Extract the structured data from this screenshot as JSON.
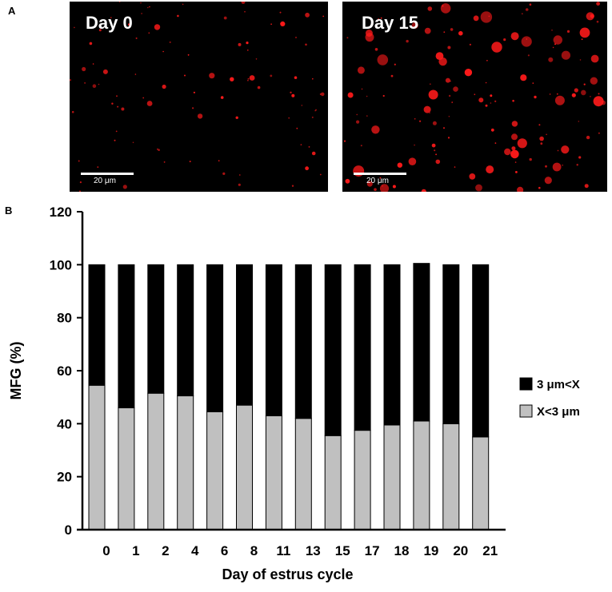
{
  "panel_a": {
    "letter": "A",
    "images": [
      {
        "label": "Day 0",
        "scale_bar": "20 μm"
      },
      {
        "label": "Day 15",
        "scale_bar": "20 μm"
      }
    ],
    "droplet_color": "#ff1a1a"
  },
  "panel_b": {
    "letter": "B"
  },
  "chart_data": {
    "type": "bar",
    "stacked": true,
    "categories": [
      "0",
      "1",
      "2",
      "4",
      "6",
      "8",
      "11",
      "13",
      "15",
      "17",
      "18",
      "19",
      "20",
      "21"
    ],
    "series": [
      {
        "name": "X<3 μm",
        "color": "#c0c0c0",
        "values": [
          54.5,
          46,
          51.5,
          50.5,
          44.5,
          47,
          43,
          42,
          35.5,
          37.5,
          39.5,
          41,
          40,
          35
        ]
      },
      {
        "name": "3 μm<X",
        "color": "#000000",
        "values": [
          45.5,
          54,
          48.5,
          49.5,
          55.5,
          53,
          57,
          58,
          64.5,
          62.5,
          60.5,
          59.5,
          60,
          65
        ]
      }
    ],
    "xlabel": "Day of estrus cycle",
    "ylabel": "MFG (%)",
    "ylim": [
      0,
      120
    ],
    "yticks": [
      0,
      20,
      40,
      60,
      80,
      100,
      120
    ],
    "legend": [
      "3 μm<X",
      "X<3 μm"
    ],
    "legend_position": "right",
    "grid": false
  }
}
